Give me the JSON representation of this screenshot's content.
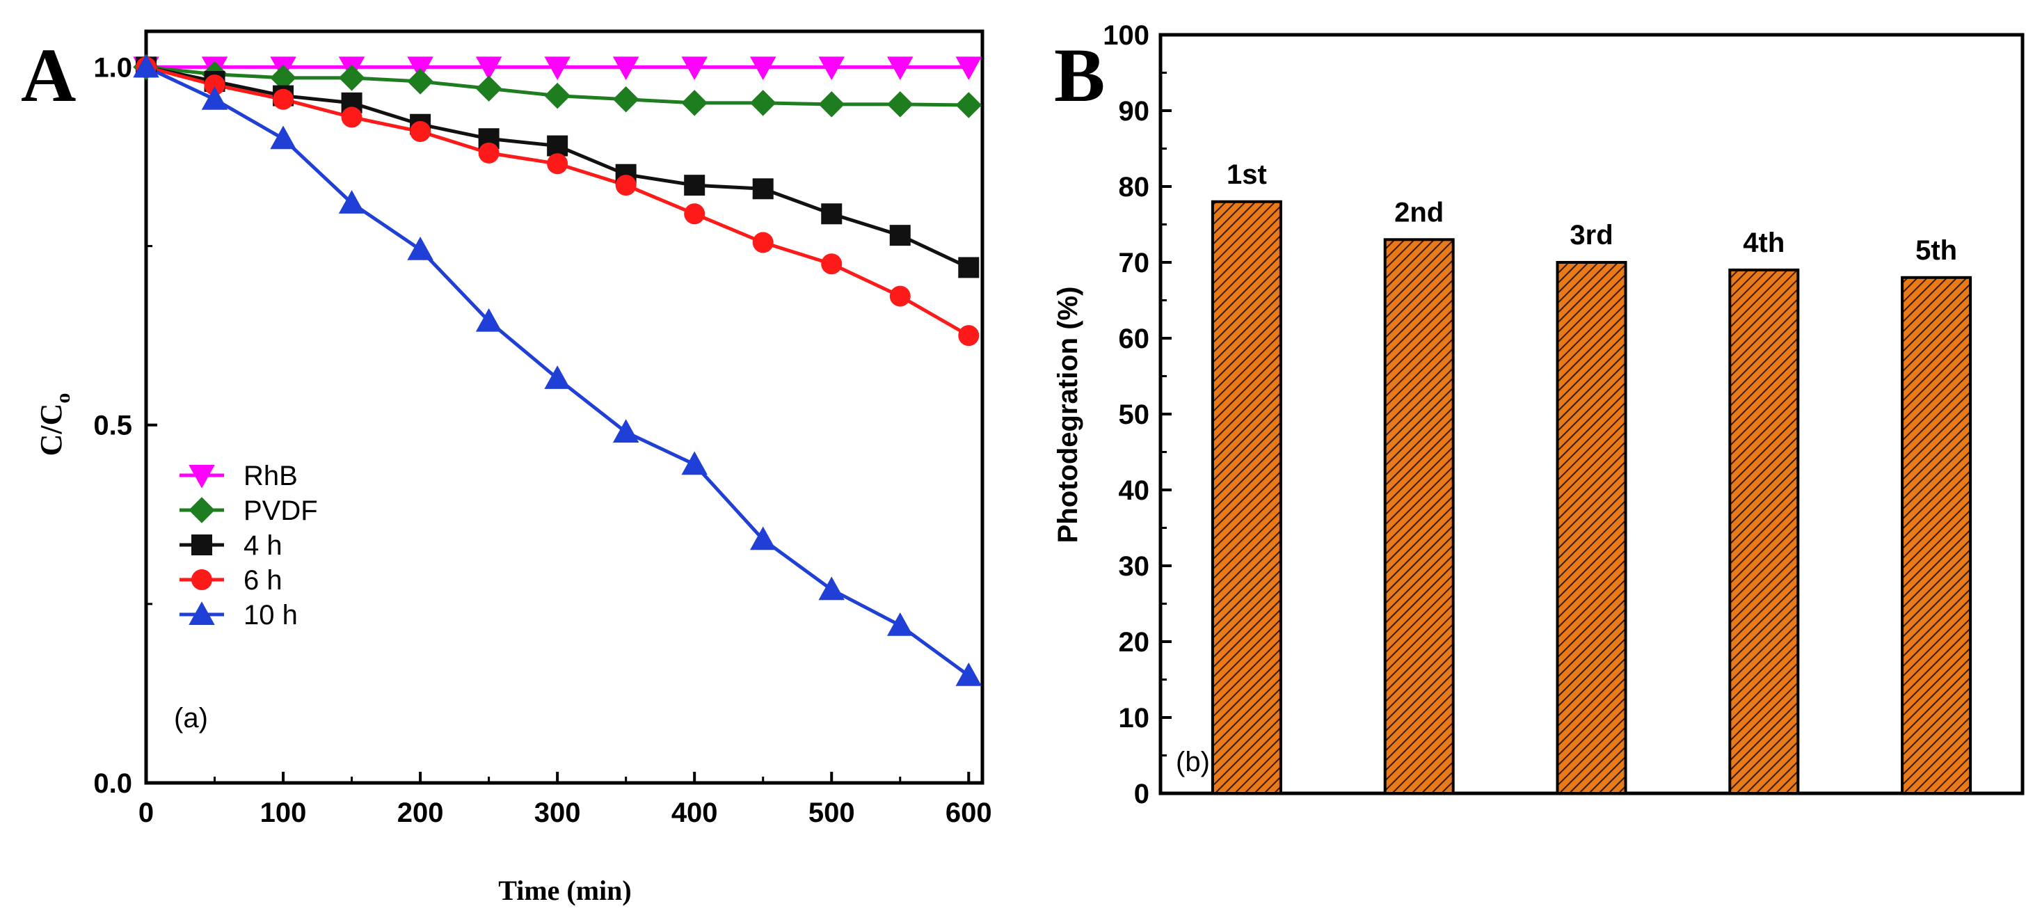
{
  "panels": {
    "a": {
      "letter": "A",
      "sublabel": "(a)"
    },
    "b": {
      "letter": "B",
      "sublabel": "(b)"
    }
  },
  "chart_data": [
    {
      "type": "line",
      "panel": "A",
      "xlabel": "Time (min)",
      "ylabel": "C/C",
      "ylabel_sub": "o",
      "xlim": [
        0,
        610
      ],
      "ylim": [
        0,
        1.05
      ],
      "xticks": [
        0,
        100,
        200,
        300,
        400,
        500,
        600
      ],
      "yticks": [
        0.0,
        0.5,
        1.0
      ],
      "ytick_labels": [
        "0.0",
        "0.5",
        "1.0"
      ],
      "x": [
        0,
        50,
        100,
        150,
        200,
        250,
        300,
        350,
        400,
        450,
        500,
        550,
        600
      ],
      "legend_position": "center-left",
      "series": [
        {
          "name": "RhB",
          "color": "#ff00ff",
          "marker": "triangle-down",
          "values": [
            1.0,
            1.0,
            1.0,
            1.0,
            1.0,
            1.0,
            1.0,
            1.0,
            1.0,
            1.0,
            1.0,
            1.0,
            1.0
          ]
        },
        {
          "name": "PVDF",
          "color": "#1e7d1e",
          "marker": "diamond",
          "values": [
            1.0,
            0.99,
            0.985,
            0.985,
            0.98,
            0.97,
            0.96,
            0.955,
            0.95,
            0.95,
            0.948,
            0.948,
            0.947
          ]
        },
        {
          "name": "4 h",
          "color": "#111111",
          "marker": "square",
          "values": [
            1.0,
            0.98,
            0.96,
            0.95,
            0.92,
            0.9,
            0.89,
            0.85,
            0.835,
            0.83,
            0.795,
            0.765,
            0.72
          ]
        },
        {
          "name": "6 h",
          "color": "#ff1a1a",
          "marker": "circle",
          "values": [
            1.0,
            0.975,
            0.955,
            0.93,
            0.91,
            0.88,
            0.865,
            0.835,
            0.795,
            0.755,
            0.725,
            0.68,
            0.625
          ]
        },
        {
          "name": "10 h",
          "color": "#1f3fd6",
          "marker": "triangle-up",
          "values": [
            1.0,
            0.955,
            0.9,
            0.81,
            0.745,
            0.645,
            0.565,
            0.49,
            0.445,
            0.34,
            0.27,
            0.22,
            0.15
          ]
        }
      ]
    },
    {
      "type": "bar",
      "panel": "B",
      "xlabel": "",
      "ylabel": "Photodegration (%)",
      "ylim": [
        0,
        100
      ],
      "yticks": [
        0,
        10,
        20,
        30,
        40,
        50,
        60,
        70,
        80,
        90,
        100
      ],
      "categories": [
        "1st",
        "2nd",
        "3rd",
        "4th",
        "5th"
      ],
      "values": [
        78,
        73,
        70,
        69,
        68
      ],
      "bar_color": "#e87a1a",
      "hatch_color": "#3a1a00"
    }
  ]
}
